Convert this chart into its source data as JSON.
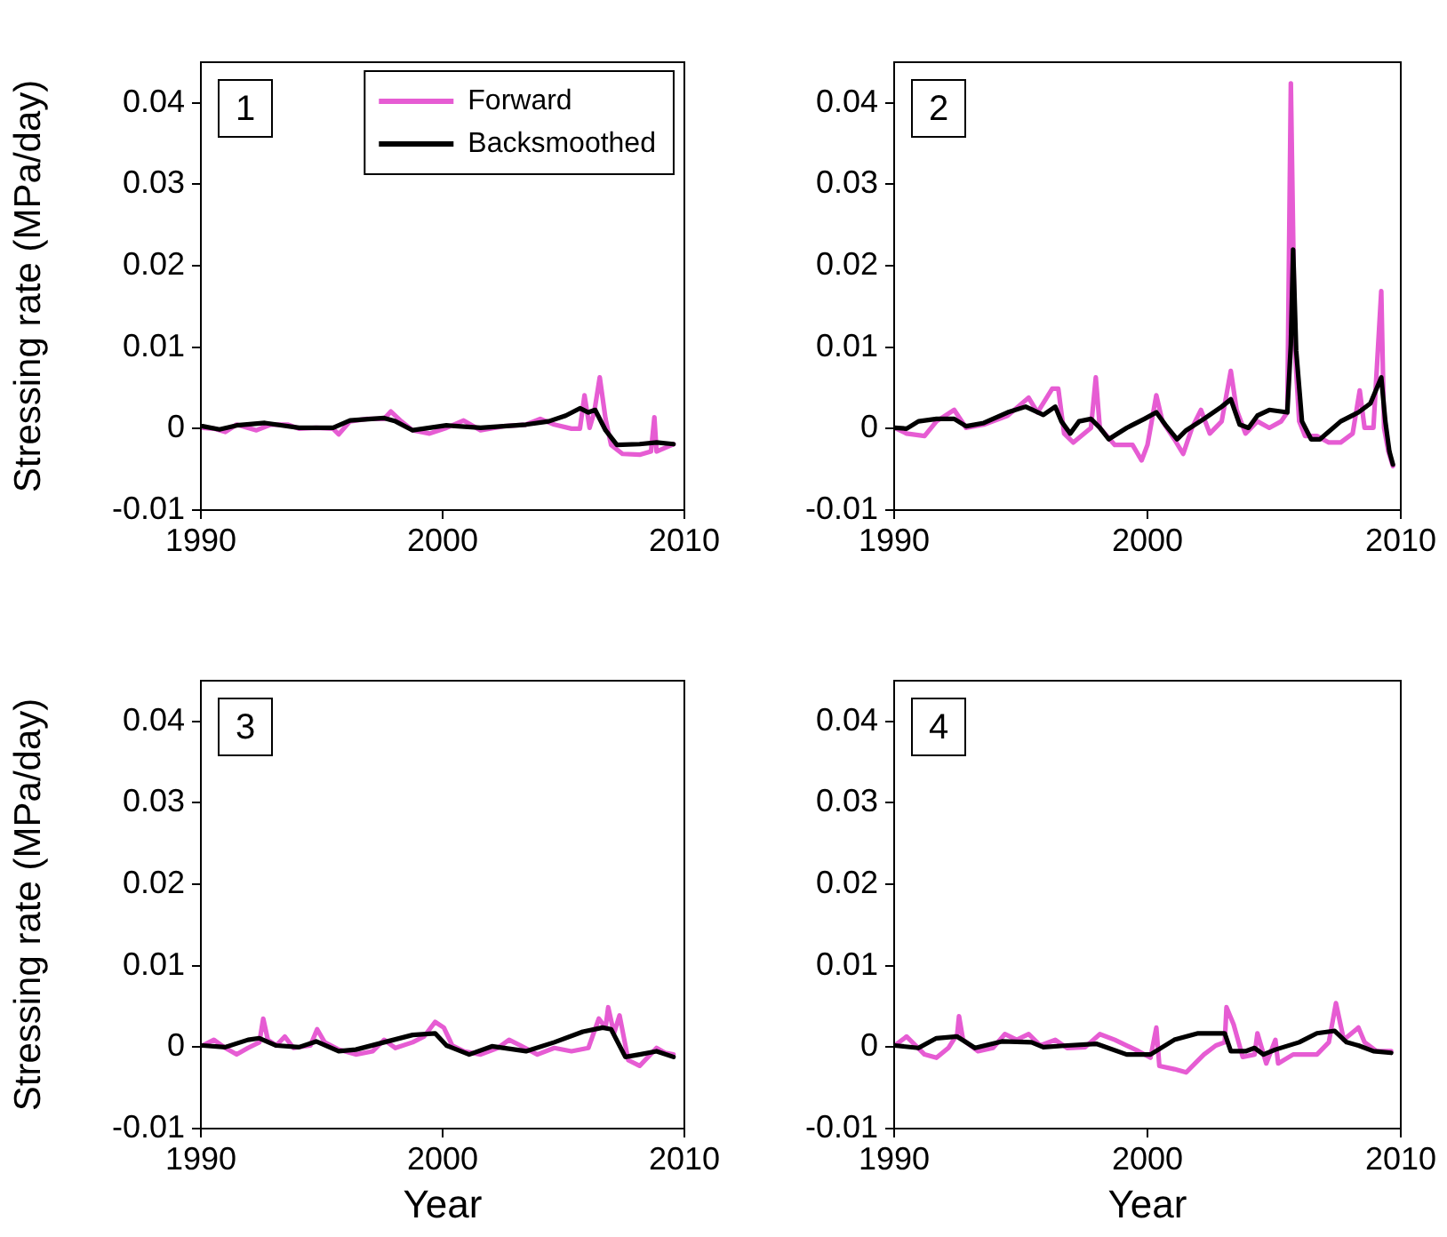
{
  "chart_data": [
    {
      "type": "line",
      "ylabel": "Stressing rate (MPa/day)",
      "xlim": [
        1990,
        2010
      ],
      "ylim": [
        -0.01,
        0.045
      ],
      "xticks": [
        1990,
        2000,
        2010
      ],
      "yticks": [
        -0.01,
        0,
        0.01,
        0.02,
        0.03,
        0.04
      ],
      "grid": false,
      "legend": "top right",
      "annotations": [
        "1"
      ],
      "series": [
        {
          "name": "Forward",
          "color": "#e65cd3",
          "x": [
            1990.07,
            1990.54,
            1991.01,
            1991.48,
            1991.95,
            1992.3,
            1992.89,
            1993.59,
            1994.06,
            1994.77,
            1995.47,
            1995.7,
            1996.17,
            1996.88,
            1997.58,
            1997.86,
            1998.29,
            1998.76,
            1999.46,
            2000.16,
            2000.87,
            2001.57,
            2002.51,
            2003.45,
            2004.04,
            2004.62,
            2005.33,
            2005.68,
            2005.87,
            2006.08,
            2006.27,
            2006.5,
            2006.74,
            2006.97,
            2007.44,
            2008.15,
            2008.62,
            2008.76,
            2008.85,
            2009.55
          ],
          "values": [
            0.0001,
            0,
            -0.0004,
            0.0005,
            0.0001,
            -0.0002,
            0.0005,
            0.0005,
            0,
            0.0001,
            0,
            -0.0007,
            0.0009,
            0.0012,
            0.0012,
            0.0021,
            0.0009,
            -0.0002,
            -0.0006,
            0.0001,
            0.001,
            -0.0002,
            0.0003,
            0.0005,
            0.0012,
            0.0005,
            0,
            0,
            0.0041,
            0.0001,
            0.002,
            0.0063,
            0.0012,
            -0.002,
            -0.0031,
            -0.0032,
            -0.0028,
            0.0014,
            -0.0028,
            -0.0019
          ]
        },
        {
          "name": "Backsmoothed",
          "color": "#000000",
          "x": [
            1990.07,
            1990.77,
            1991.48,
            1992.65,
            1994.06,
            1995.47,
            1996.17,
            1997.58,
            1998.05,
            1998.76,
            2000.16,
            2001.57,
            2003.45,
            2004.39,
            2005.09,
            2005.68,
            2006.03,
            2006.31,
            2006.74,
            2007.21,
            2008.15,
            2008.85,
            2009.55
          ],
          "values": [
            0.0003,
            -0.0001,
            0.0004,
            0.0007,
            0.0001,
            0.0001,
            0.001,
            0.0013,
            0.0009,
            -0.0002,
            0.0004,
            0.0001,
            0.0005,
            0.0009,
            0.0016,
            0.0025,
            0.002,
            0.0023,
            -0.0002,
            -0.002,
            -0.0019,
            -0.0017,
            -0.0019
          ]
        }
      ]
    },
    {
      "type": "line",
      "xlim": [
        1990,
        2010
      ],
      "ylim": [
        -0.01,
        0.045
      ],
      "xticks": [
        1990,
        2000,
        2010
      ],
      "yticks": [
        -0.01,
        0,
        0.01,
        0.02,
        0.03,
        0.04
      ],
      "grid": false,
      "annotations": [
        "2"
      ],
      "series": [
        {
          "color": "#e65cd3",
          "x": [
            1990.02,
            1990.49,
            1991.2,
            1991.67,
            1992.37,
            1992.84,
            1993.54,
            1994.48,
            1995.31,
            1995.66,
            1996.24,
            1996.48,
            1996.71,
            1997.07,
            1997.77,
            1997.96,
            1998.12,
            1998.71,
            1999.41,
            1999.77,
            2000,
            2000.35,
            2000.59,
            2001.06,
            2001.41,
            2001.76,
            2002.11,
            2002.46,
            2002.93,
            2003.29,
            2003.52,
            2003.87,
            2004.34,
            2004.81,
            2005.28,
            2005.52,
            2005.66,
            2005.82,
            2005.99,
            2006.22,
            2006.69,
            2007.16,
            2007.63,
            2008.1,
            2008.38,
            2008.57,
            2008.92,
            2009.23,
            2009.34,
            2009.51,
            2009.69
          ],
          "values": [
            0.0001,
            -0.0006,
            -0.0009,
            0.0009,
            0.0023,
            0.0001,
            0.0005,
            0.0016,
            0.0038,
            0.002,
            0.0049,
            0.0049,
            -0.0006,
            -0.0017,
            0.0001,
            0.0063,
            0.0001,
            -0.002,
            -0.002,
            -0.0039,
            -0.002,
            0.0041,
            0.0009,
            -0.0013,
            -0.0031,
            0.0001,
            0.0023,
            -0.0006,
            0.0009,
            0.0071,
            0.0023,
            -0.0006,
            0.0009,
            0.0001,
            0.0009,
            0.002,
            0.0424,
            0.0096,
            0.0009,
            -0.0009,
            -0.0009,
            -0.0017,
            -0.0017,
            -0.0006,
            0.0047,
            0.0001,
            0.0001,
            0.0169,
            0.0001,
            -0.0028,
            -0.0046
          ]
        },
        {
          "color": "#000000",
          "x": [
            1990.02,
            1990.49,
            1990.96,
            1991.67,
            1992.37,
            1992.84,
            1993.54,
            1994.48,
            1995.19,
            1995.89,
            1996.36,
            1996.6,
            1996.95,
            1997.3,
            1997.77,
            1998.12,
            1998.47,
            1999.18,
            1999.88,
            2000.35,
            2000.7,
            2001.17,
            2001.53,
            2002.23,
            2002.93,
            2003.29,
            2003.64,
            2003.99,
            2004.34,
            2004.81,
            2005.52,
            2005.66,
            2005.75,
            2005.87,
            2006.1,
            2006.46,
            2006.81,
            2007.63,
            2008.33,
            2008.8,
            2009.23,
            2009.39,
            2009.55,
            2009.69
          ],
          "values": [
            0.0001,
            0,
            0.0009,
            0.0012,
            0.0012,
            0.0003,
            0.0007,
            0.002,
            0.0027,
            0.0017,
            0.0027,
            0.0009,
            -0.0006,
            0.0009,
            0.0012,
            0.0001,
            -0.0013,
            0.0001,
            0.0012,
            0.002,
            0.0005,
            -0.0013,
            -0.0002,
            0.0012,
            0.0027,
            0.0036,
            0.0005,
            0.0001,
            0.0016,
            0.0023,
            0.002,
            0.0103,
            0.022,
            0.0096,
            0.0009,
            -0.0013,
            -0.0013,
            0.0009,
            0.002,
            0.0031,
            0.0063,
            0.0009,
            -0.0028,
            -0.0044
          ]
        }
      ]
    },
    {
      "type": "line",
      "ylabel": "Stressing rate (MPa/day)",
      "xlabel": "Year",
      "xlim": [
        1990,
        2010
      ],
      "ylim": [
        -0.01,
        0.045
      ],
      "xticks": [
        1990,
        2000,
        2010
      ],
      "yticks": [
        -0.01,
        0,
        0.01,
        0.02,
        0.03,
        0.04
      ],
      "grid": false,
      "annotations": [
        "3"
      ],
      "series": [
        {
          "color": "#e65cd3",
          "x": [
            1990.07,
            1990.54,
            1991.01,
            1991.48,
            1991.95,
            1992.42,
            1992.58,
            1992.77,
            1993.12,
            1993.47,
            1993.83,
            1994.53,
            1994.81,
            1995.12,
            1995.7,
            1996.41,
            1997.11,
            1997.58,
            1998.05,
            1998.76,
            1999.23,
            1999.69,
            2000.05,
            2000.4,
            2000.87,
            2001.57,
            2002.28,
            2002.75,
            2003.22,
            2003.92,
            2004.62,
            2005.33,
            2006.03,
            2006.46,
            2006.74,
            2006.85,
            2007.09,
            2007.32,
            2007.68,
            2008.15,
            2008.5,
            2008.85,
            2009.2,
            2009.55
          ],
          "values": [
            0.0002,
            0.0009,
            -0.0001,
            -0.0009,
            -0.0001,
            0.0006,
            0.0035,
            0.0009,
            0.0002,
            0.0013,
            -0.0001,
            0.0002,
            0.0022,
            0.0006,
            -0.0003,
            -0.0009,
            -0.0005,
            0.0009,
            -0.0001,
            0.0006,
            0.0013,
            0.0031,
            0.0024,
            0.0002,
            -0.0005,
            -0.0009,
            -0.0001,
            0.0009,
            0.0002,
            -0.0009,
            -0.0001,
            -0.0005,
            -0.0001,
            0.0035,
            0.0024,
            0.0049,
            0.0017,
            0.0039,
            -0.0016,
            -0.0023,
            -0.0012,
            -0.0001,
            -0.0007,
            -0.0009
          ]
        },
        {
          "color": "#000000",
          "x": [
            1990.07,
            1991.01,
            1991.95,
            1992.42,
            1993.12,
            1994.06,
            1994.77,
            1995.7,
            1996.41,
            1997.58,
            1998.76,
            1999.69,
            2000.16,
            2001.1,
            2002.04,
            2003.45,
            2004.62,
            2005.8,
            2006.62,
            2006.97,
            2007.56,
            2008.15,
            2008.85,
            2009.55
          ],
          "values": [
            0.0002,
            0,
            0.0009,
            0.0011,
            0.0002,
            0,
            0.0007,
            -0.0005,
            -0.0003,
            0.0006,
            0.0015,
            0.0017,
            0.0002,
            -0.0009,
            0.0001,
            -0.0005,
            0.0006,
            0.0019,
            0.0024,
            0.0022,
            -0.0012,
            -0.0009,
            -0.0005,
            -0.0012
          ]
        }
      ]
    },
    {
      "type": "line",
      "xlabel": "Year",
      "xlim": [
        1990,
        2010
      ],
      "ylim": [
        -0.01,
        0.045
      ],
      "xticks": [
        1990,
        2000,
        2010
      ],
      "yticks": [
        -0.01,
        0,
        0.01,
        0.02,
        0.03,
        0.04
      ],
      "grid": false,
      "annotations": [
        "4"
      ],
      "series": [
        {
          "color": "#e65cd3",
          "x": [
            1990.02,
            1990.49,
            1990.85,
            1991.2,
            1991.67,
            1992.14,
            1992.49,
            1992.56,
            1992.72,
            1993.31,
            1993.9,
            1994.37,
            1994.84,
            1995.31,
            1995.77,
            1996.36,
            1996.83,
            1997.54,
            1998.12,
            1998.71,
            1999.18,
            1999.65,
            2000.12,
            2000.35,
            2000.47,
            2001.06,
            2001.53,
            2001.88,
            2002.23,
            2002.7,
            2003.05,
            2003.12,
            2003.4,
            2003.76,
            2004.23,
            2004.34,
            2004.69,
            2005.05,
            2005.16,
            2005.75,
            2006.69,
            2007.16,
            2007.44,
            2007.75,
            2008.33,
            2008.57,
            2009.04,
            2009.62
          ],
          "values": [
            0.0002,
            0.0013,
            0.0002,
            -0.0009,
            -0.0013,
            -0.0001,
            0.0016,
            0.0038,
            0.0009,
            -0.0005,
            -0.0001,
            0.0016,
            0.0009,
            0.0016,
            0.0002,
            0.0009,
            -0.0001,
            0,
            0.0016,
            0.0009,
            0.0002,
            -0.0005,
            -0.0013,
            0.0024,
            -0.0023,
            -0.0027,
            -0.0031,
            -0.002,
            -0.0009,
            0.0002,
            0.0006,
            0.0049,
            0.0028,
            -0.0012,
            -0.0009,
            0.0017,
            -0.002,
            0.0009,
            -0.002,
            -0.0009,
            -0.0009,
            0.0006,
            0.0054,
            0.0009,
            0.0024,
            0.0006,
            -0.0005,
            -0.0005
          ]
        },
        {
          "color": "#000000",
          "x": [
            1990.02,
            1990.96,
            1991.67,
            1992.49,
            1993.19,
            1994.25,
            1995.42,
            1995.89,
            1996.83,
            1998,
            1999.18,
            2000.12,
            2001.06,
            2002,
            2003.05,
            2003.29,
            2003.87,
            2004.23,
            2004.58,
            2005.05,
            2005.99,
            2006.69,
            2007.39,
            2007.86,
            2008.33,
            2008.92,
            2009.62
          ],
          "values": [
            0.0002,
            -0.0001,
            0.0011,
            0.0013,
            -0.0001,
            0.0007,
            0.0006,
            0,
            0.0002,
            0.0004,
            -0.0009,
            -0.0009,
            0.0009,
            0.0017,
            0.0017,
            -0.0005,
            -0.0005,
            -0.0001,
            -0.0009,
            -0.0003,
            0.0006,
            0.0017,
            0.002,
            0.0006,
            0.0002,
            -0.0005,
            -0.0007
          ]
        }
      ]
    }
  ]
}
